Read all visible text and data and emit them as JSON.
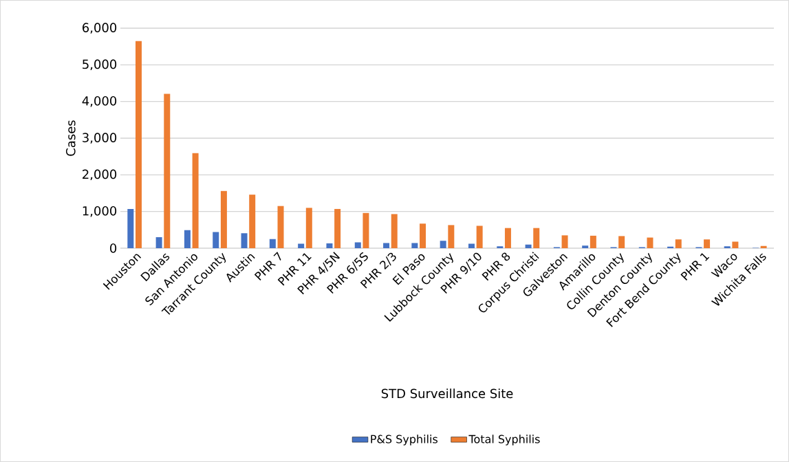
{
  "chart_data": {
    "type": "bar",
    "xlabel": "STD Surveillance Site",
    "ylabel": "Cases",
    "categories": [
      "Houston",
      "Dallas",
      "San Antonio",
      "Tarrant County",
      "Austin",
      "PHR 7",
      "PHR 11",
      "PHR 4/5N",
      "PHR 6/5S",
      "PHR 2/3",
      "El Paso",
      "Lubbock County",
      "PHR 9/10",
      "PHR 8",
      "Corpus Christi",
      "Galveston",
      "Amarillo",
      "Collin County",
      "Denton County",
      "Fort Bend County",
      "PHR 1",
      "Waco",
      "Wichita Falls"
    ],
    "series": [
      {
        "name": "P&S Syphilis",
        "color": "#4472c4",
        "values": [
          1070,
          300,
          490,
          440,
          410,
          250,
          120,
          130,
          160,
          140,
          140,
          200,
          120,
          50,
          100,
          30,
          70,
          30,
          30,
          40,
          30,
          50,
          10
        ]
      },
      {
        "name": "Total Syphilis",
        "color": "#ed7d31",
        "values": [
          5650,
          4210,
          2590,
          1560,
          1460,
          1150,
          1100,
          1070,
          960,
          930,
          670,
          630,
          610,
          550,
          550,
          350,
          340,
          330,
          290,
          240,
          240,
          180,
          60
        ]
      }
    ],
    "ylim": [
      0,
      6000
    ],
    "yticks": [
      {
        "value": 0,
        "label": "0"
      },
      {
        "value": 1000,
        "label": "1,000"
      },
      {
        "value": 2000,
        "label": "2,000"
      },
      {
        "value": 3000,
        "label": "3,000"
      },
      {
        "value": 4000,
        "label": "4,000"
      },
      {
        "value": 5000,
        "label": "5,000"
      },
      {
        "value": 6000,
        "label": "6,000"
      }
    ],
    "grid": "y",
    "legend": "bottom"
  }
}
